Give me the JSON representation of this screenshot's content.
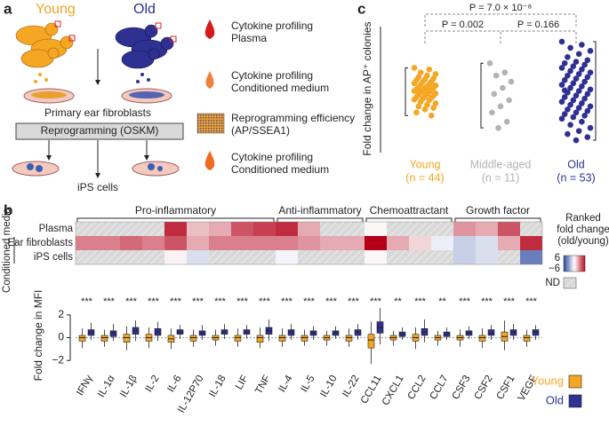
{
  "panel_a": {
    "label": "a",
    "young": "Young",
    "old": "Old",
    "fibroblasts": "Primary ear fibroblasts",
    "step": "Reprogramming (OSKM)",
    "ips": "iPS cells",
    "legend": [
      [
        "Cytokine profiling",
        "Plasma"
      ],
      [
        "Cytokine profiling",
        "Conditioned medium"
      ],
      [
        "Reprogramming efficiency",
        "(AP/SSEA1)"
      ],
      [
        "Cytokine profiling",
        "Conditioned medium"
      ]
    ]
  },
  "chart_data": [
    {
      "type": "heatmap",
      "label": "b",
      "categories": [
        "IFNγ",
        "IL-1α",
        "IL-1β",
        "IL-2",
        "IL-6",
        "IL-12P70",
        "IL-18",
        "LIF",
        "TNF",
        "IL-4",
        "IL-5",
        "IL-10",
        "IL-22",
        "CCL11",
        "CXCL1",
        "CCL2",
        "CCL7",
        "CSF3",
        "CSF2",
        "CSF1",
        "VEGF"
      ],
      "groups": [
        {
          "name": "Pro-inflammatory",
          "span": [
            0,
            8
          ]
        },
        {
          "name": "Anti-inflammatory",
          "span": [
            9,
            12
          ]
        },
        {
          "name": "Chemoattractant",
          "span": [
            13,
            16
          ]
        },
        {
          "name": "Growth factor",
          "span": [
            17,
            20
          ]
        }
      ],
      "rows": [
        "Plasma",
        "Ear fibroblasts",
        "iPS cells"
      ],
      "row_group": "Conditioned media",
      "values": [
        [
          null,
          null,
          null,
          null,
          5,
          1.5,
          2,
          4,
          4.5,
          5,
          2,
          null,
          null,
          0.2,
          null,
          null,
          null,
          2.5,
          2,
          4,
          null
        ],
        [
          3,
          3,
          3.5,
          3,
          4,
          2,
          3,
          3,
          3,
          3,
          2.5,
          2,
          2,
          6,
          2,
          1,
          -0.5,
          -1.5,
          -1,
          2,
          5
        ],
        [
          null,
          null,
          null,
          null,
          0.3,
          -1,
          null,
          null,
          null,
          -0.3,
          null,
          null,
          null,
          0.2,
          null,
          null,
          null,
          -1.5,
          -1,
          null,
          -4
        ]
      ],
      "vlim": [
        -6,
        6
      ],
      "colorbar_ticks": [
        6,
        {
          "value": -6,
          "label": "−6"
        }
      ],
      "legend_title": [
        "Ranked",
        "fold change",
        "(old/young)"
      ],
      "nd_label": "ND"
    },
    {
      "type": "box",
      "ylabel": "Fold change in MFI",
      "categories": [
        "IFNγ",
        "IL-1α",
        "IL-1β",
        "IL-2",
        "IL-6",
        "IL-12P70",
        "IL-18",
        "LIF",
        "TNF",
        "IL-4",
        "IL-5",
        "IL-10",
        "IL-22",
        "CCL11",
        "CXCL1",
        "CCL2",
        "CCL7",
        "CSF3",
        "CSF2",
        "CSF1",
        "VEGF"
      ],
      "significance": [
        "***",
        "***",
        "***",
        "***",
        "***",
        "***",
        "***",
        "***",
        "***",
        "***",
        "***",
        "***",
        "***",
        "***",
        "**",
        "***",
        "**",
        "***",
        "***",
        "***",
        "***"
      ],
      "series": [
        {
          "name": "Young",
          "color": "#f5a623",
          "values": [
            [
              -0.9,
              -0.3,
              0,
              0.2,
              0.8
            ],
            [
              -0.8,
              -0.3,
              0,
              0.2,
              0.7
            ],
            [
              -1.1,
              -0.4,
              0,
              0.3,
              1.0
            ],
            [
              -0.9,
              -0.3,
              0,
              0.3,
              0.9
            ],
            [
              -1.0,
              -0.4,
              -0.1,
              0.2,
              0.8
            ],
            [
              -0.8,
              -0.3,
              0,
              0.2,
              0.7
            ],
            [
              -0.7,
              -0.2,
              0,
              0.2,
              0.7
            ],
            [
              -0.8,
              -0.3,
              0,
              0.2,
              0.8
            ],
            [
              -0.9,
              -0.4,
              0,
              0.2,
              0.9
            ],
            [
              -0.8,
              -0.3,
              0,
              0.2,
              0.8
            ],
            [
              -0.7,
              -0.3,
              0,
              0.2,
              0.7
            ],
            [
              -0.7,
              -0.2,
              0,
              0.2,
              0.6
            ],
            [
              -0.8,
              -0.3,
              0,
              0.2,
              0.8
            ],
            [
              -2.3,
              -0.9,
              -0.2,
              0.3,
              1.4
            ],
            [
              -0.7,
              -0.2,
              0,
              0.2,
              0.6
            ],
            [
              -1.0,
              -0.3,
              0,
              0.3,
              0.9
            ],
            [
              -0.7,
              -0.2,
              0,
              0.2,
              0.6
            ],
            [
              -0.8,
              -0.2,
              0,
              0.2,
              0.7
            ],
            [
              -0.9,
              -0.3,
              0,
              0.2,
              0.8
            ],
            [
              -1.1,
              -0.3,
              0.1,
              0.5,
              1.5
            ],
            [
              -0.8,
              -0.3,
              0,
              0.2,
              0.7
            ]
          ]
        },
        {
          "name": "Old",
          "color": "#2e3192",
          "values": [
            [
              -0.2,
              0.2,
              0.5,
              0.7,
              1.3
            ],
            [
              -0.3,
              0.1,
              0.4,
              0.6,
              1.2
            ],
            [
              -0.3,
              0.3,
              0.6,
              0.9,
              1.5
            ],
            [
              -0.3,
              0.2,
              0.5,
              0.8,
              1.4
            ],
            [
              -0.1,
              0.3,
              0.5,
              0.7,
              1.1
            ],
            [
              -0.2,
              0.2,
              0.4,
              0.6,
              1.1
            ],
            [
              -0.1,
              0.3,
              0.5,
              0.7,
              1.2
            ],
            [
              -0.1,
              0.3,
              0.5,
              0.7,
              1.1
            ],
            [
              -0.3,
              0.3,
              0.6,
              0.9,
              1.6
            ],
            [
              -0.2,
              0.2,
              0.5,
              0.7,
              1.2
            ],
            [
              -0.2,
              0.2,
              0.4,
              0.6,
              1.0
            ],
            [
              -0.1,
              0.2,
              0.4,
              0.6,
              1.0
            ],
            [
              -0.2,
              0.2,
              0.5,
              0.7,
              1.2
            ],
            [
              -0.6,
              0.4,
              0.9,
              1.4,
              2.6
            ],
            [
              -0.2,
              0.1,
              0.3,
              0.5,
              0.9
            ],
            [
              -0.4,
              0.2,
              0.5,
              0.8,
              1.6
            ],
            [
              -0.2,
              0.1,
              0.3,
              0.5,
              0.9
            ],
            [
              -0.1,
              0.2,
              0.4,
              0.6,
              1.0
            ],
            [
              -0.2,
              0.2,
              0.4,
              0.7,
              1.1
            ],
            [
              -0.2,
              0.2,
              0.5,
              0.7,
              1.2
            ],
            [
              -0.2,
              0.2,
              0.5,
              0.7,
              1.1
            ]
          ]
        }
      ],
      "ylim": [
        -2.6,
        3.0
      ],
      "yticks": [
        {
          "value": -2,
          "label": "−2"
        },
        0,
        2
      ]
    },
    {
      "type": "strip",
      "label": "c",
      "ylabel": "Fold change in AP⁺ colonies",
      "ylim": [
        -1.8,
        1.8
      ],
      "groups": [
        {
          "name": "Young",
          "n_label": "(n = 44)",
          "color": "#f5a623",
          "values": [
            0.75,
            0.7,
            0.6,
            0.55,
            0.5,
            0.45,
            0.4,
            0.38,
            0.35,
            0.3,
            0.3,
            0.25,
            0.22,
            0.2,
            0.18,
            0.15,
            0.12,
            0.1,
            0.08,
            0.05,
            0.03,
            0,
            0,
            -0.02,
            -0.05,
            -0.08,
            -0.1,
            -0.12,
            -0.15,
            -0.18,
            -0.2,
            -0.22,
            -0.25,
            -0.28,
            -0.3,
            -0.35,
            -0.4,
            -0.45,
            -0.5,
            -0.55,
            -0.6,
            -0.7,
            -0.8,
            0.02
          ]
        },
        {
          "name": "Middle-aged",
          "n_label": "(n = 11)",
          "color": "#b3b3b3",
          "values": [
            0.9,
            0.6,
            0.5,
            0.3,
            0.1,
            -0.1,
            -0.3,
            -0.5,
            -0.7,
            -1.0,
            -1.2
          ]
        },
        {
          "name": "Old",
          "n_label": "(n = 53)",
          "color": "#2e3192",
          "values": [
            1.6,
            1.5,
            1.4,
            1.3,
            1.2,
            1.1,
            1.0,
            0.95,
            0.9,
            0.85,
            0.8,
            0.75,
            0.7,
            0.65,
            0.6,
            0.55,
            0.5,
            0.45,
            0.4,
            0.35,
            0.3,
            0.25,
            0.2,
            0.15,
            0.1,
            0.05,
            0,
            -0.05,
            -0.1,
            -0.15,
            -0.2,
            -0.25,
            -0.3,
            -0.35,
            -0.4,
            -0.45,
            -0.5,
            -0.55,
            -0.6,
            -0.65,
            -0.7,
            -0.75,
            -0.8,
            -0.85,
            -0.9,
            -1.0,
            -1.1,
            -1.2,
            -1.3,
            -1.4,
            -1.5,
            -1.6,
            0.02
          ]
        }
      ],
      "p_values": [
        {
          "label": "P = 0.002",
          "between": [
            0,
            1
          ]
        },
        {
          "label": "P = 0.166",
          "between": [
            1,
            2
          ]
        },
        {
          "label": "P = 7.0 × 10⁻⁸",
          "between": [
            0,
            2
          ]
        }
      ]
    }
  ]
}
